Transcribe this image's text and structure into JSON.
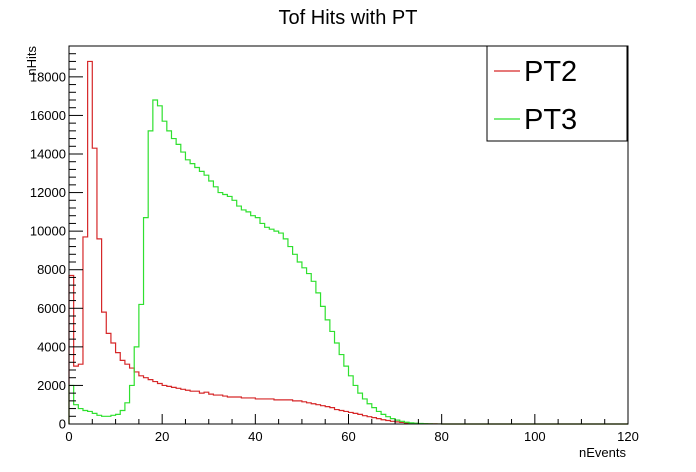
{
  "chart_data": {
    "type": "line",
    "title": "Tof Hits with PT",
    "xlabel": "nEvents",
    "ylabel": "nHits",
    "xlim": [
      0,
      120
    ],
    "ylim": [
      0,
      19600
    ],
    "xticks": [
      0,
      20,
      40,
      60,
      80,
      100,
      120
    ],
    "yticks": [
      0,
      2000,
      4000,
      6000,
      8000,
      10000,
      12000,
      14000,
      16000,
      18000
    ],
    "grid": false,
    "legend_position": "top-right",
    "bin_width": 1,
    "series": [
      {
        "name": "PT2",
        "color": "#d62728",
        "values": [
          7700,
          3000,
          3100,
          9700,
          18800,
          14300,
          9600,
          5800,
          4700,
          4200,
          3700,
          3300,
          3100,
          2900,
          2700,
          2500,
          2400,
          2300,
          2200,
          2100,
          2000,
          1950,
          1900,
          1850,
          1800,
          1750,
          1700,
          1700,
          1600,
          1650,
          1550,
          1500,
          1500,
          1450,
          1400,
          1400,
          1400,
          1350,
          1350,
          1350,
          1300,
          1300,
          1300,
          1300,
          1250,
          1250,
          1250,
          1250,
          1200,
          1200,
          1150,
          1100,
          1050,
          1000,
          950,
          900,
          850,
          750,
          700,
          650,
          600,
          550,
          500,
          430,
          380,
          330,
          280,
          220,
          180,
          140,
          110,
          80,
          60,
          45,
          30,
          20,
          15,
          10,
          5,
          2,
          0,
          0,
          0,
          0,
          0,
          0,
          0,
          0,
          0,
          0,
          0,
          0,
          0,
          0,
          0,
          0,
          0,
          0,
          0,
          0,
          0,
          0,
          0,
          0,
          0,
          0,
          0,
          0,
          0,
          0,
          0,
          0,
          0,
          0,
          0,
          0,
          0,
          0,
          0,
          0
        ]
      },
      {
        "name": "PT3",
        "color": "#2fe02f",
        "values": [
          2000,
          1000,
          800,
          700,
          650,
          550,
          450,
          400,
          400,
          450,
          500,
          700,
          1100,
          2000,
          4000,
          6200,
          10700,
          15200,
          16800,
          16500,
          15700,
          15200,
          14800,
          14500,
          14100,
          13700,
          13500,
          13300,
          13100,
          12900,
          12600,
          12300,
          12000,
          11900,
          11800,
          11600,
          11300,
          11100,
          11000,
          10800,
          10700,
          10400,
          10200,
          10100,
          10000,
          9900,
          9600,
          9200,
          8800,
          8400,
          8100,
          7800,
          7400,
          6800,
          6100,
          5400,
          4800,
          4200,
          3600,
          3000,
          2500,
          2000,
          1600,
          1300,
          1050,
          850,
          650,
          500,
          380,
          280,
          200,
          140,
          90,
          60,
          40,
          25,
          15,
          8,
          4,
          2,
          0,
          0,
          0,
          0,
          0,
          0,
          0,
          0,
          0,
          0,
          0,
          0,
          0,
          0,
          0,
          0,
          0,
          0,
          0,
          0,
          0,
          0,
          0,
          0,
          0,
          0,
          0,
          0,
          0,
          0,
          0,
          0,
          0,
          0,
          0,
          0,
          0,
          0,
          0,
          0
        ]
      }
    ]
  }
}
